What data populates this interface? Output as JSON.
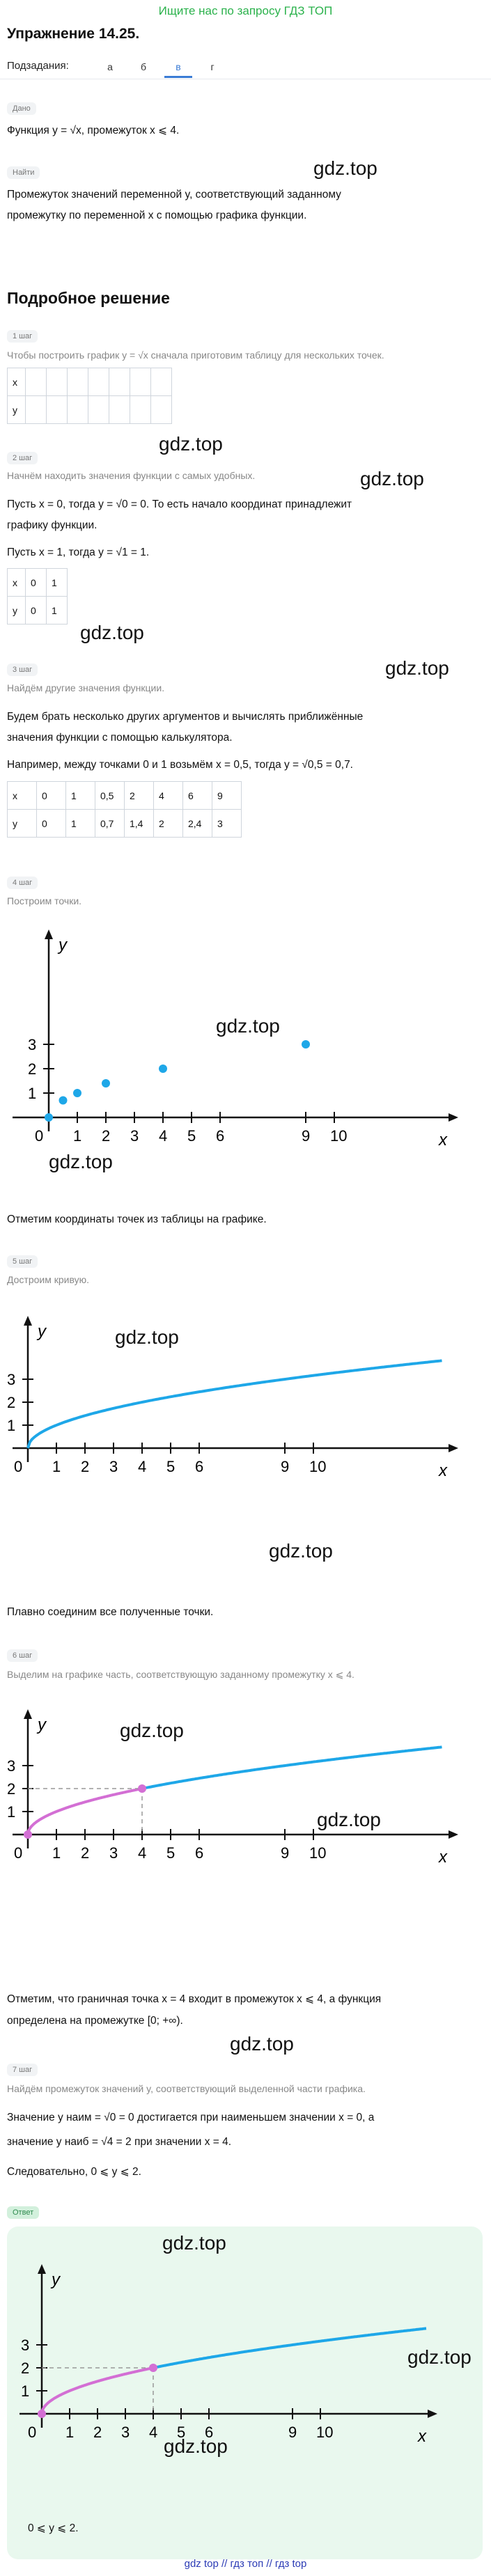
{
  "top_link": "Ищите нас по запросу ГДЗ ТОП",
  "title": "Упражнение 14.25.",
  "subtasks": {
    "label": "Подзадания:",
    "items": [
      "а",
      "б",
      "в",
      "г"
    ],
    "active": "в"
  },
  "given": {
    "tag": "Дано",
    "text": "Функция y = √x, промежуток x ⩽ 4."
  },
  "find": {
    "tag": "Найти",
    "text1": "Промежуток значений переменной y, соответствующий заданному",
    "text2": "промежутку по переменной x с помощью графика функции."
  },
  "solution_title": "Подробное решение",
  "watermark": "gdz.top",
  "step1": {
    "tag": "1 шаг",
    "hint": "Чтобы построить график y = √x сначала приготовим таблицу для нескольких точек.",
    "rows": [
      [
        "x",
        "",
        "",
        "",
        "",
        "",
        "",
        ""
      ],
      [
        "y",
        "",
        "",
        "",
        "",
        "",
        "",
        ""
      ]
    ]
  },
  "step2": {
    "tag": "2 шаг",
    "hint": "Начнём находить значения функции с самых удобных.",
    "line1": "Пусть x = 0, тогда y = √0 = 0. То есть начало координат принадлежит",
    "line2": "графику функции.",
    "line3": "Пусть x = 1, тогда y = √1 = 1.",
    "rows": [
      [
        "x",
        "0",
        "1"
      ],
      [
        "y",
        "0",
        "1"
      ]
    ]
  },
  "step3": {
    "tag": "3 шаг",
    "hint": "Найдём другие значения функции.",
    "line1": "Будем брать несколько других аргументов и вычислять приближённые",
    "line2": "значения функции с помощью калькулятора.",
    "line3": "Например, между точками 0 и 1 возьмём x = 0,5, тогда y = √0,5 = 0,7.",
    "rows": [
      [
        "x",
        "0",
        "1",
        "0,5",
        "2",
        "4",
        "6",
        "9"
      ],
      [
        "y",
        "0",
        "1",
        "0,7",
        "1,4",
        "2",
        "2,4",
        "3"
      ]
    ]
  },
  "step4": {
    "tag": "4 шаг",
    "hint": "Построим точки.",
    "after": "Отметим координаты точек из таблицы на графике."
  },
  "step5": {
    "tag": "5 шаг",
    "hint": "Достроим кривую.",
    "after": "Плавно соединим все полученные точки."
  },
  "step6": {
    "tag": "6 шаг",
    "hint": "Выделим на графике часть, соответствующую заданному промежутку x ⩽ 4.",
    "after1": "Отметим, что граничная точка x = 4 входит в промежуток x ⩽ 4, а функция",
    "after2": "определена на промежутке [0; +∞)."
  },
  "step7": {
    "tag": "7 шаг",
    "hint": "Найдём промежуток значений y, соответствующий выделенной части графика.",
    "line1": "Значение y наим = √0 = 0 достигается при наименьшем значении x = 0, а",
    "line2": "значение y наиб = √4 = 2 при значении x = 4.",
    "line3": "Следовательно, 0 ⩽ y ⩽ 2."
  },
  "answer": {
    "tag": "Ответ",
    "text": "0 ⩽ y ⩽ 2."
  },
  "footer": "gdz top // гдз топ // гдз top",
  "chart_data": [
    {
      "type": "scatter",
      "xlabel": "x",
      "ylabel": "y",
      "x_ticks": [
        "0",
        "1",
        "2",
        "3",
        "4",
        "5",
        "6",
        "9",
        "10"
      ],
      "y_ticks": [
        "1",
        "2",
        "3"
      ],
      "points": [
        [
          0,
          0
        ],
        [
          0.5,
          0.7
        ],
        [
          1,
          1
        ],
        [
          2,
          1.4
        ],
        [
          4,
          2
        ],
        [
          9,
          3
        ]
      ],
      "point_color": "#1ea7e8"
    },
    {
      "type": "line",
      "xlabel": "x",
      "ylabel": "y",
      "function": "y = √x",
      "x_ticks": [
        "0",
        "1",
        "2",
        "3",
        "4",
        "5",
        "6",
        "9",
        "10"
      ],
      "y_ticks": [
        "1",
        "2",
        "3"
      ],
      "x_range": [
        0,
        13
      ],
      "curve_color": "#1ea7e8"
    },
    {
      "type": "line",
      "xlabel": "x",
      "ylabel": "y",
      "function": "y = √x",
      "highlight_range": [
        0,
        4
      ],
      "highlight_color": "#d36fd4",
      "curve_color": "#1ea7e8",
      "marked_points": [
        [
          0,
          0
        ],
        [
          4,
          2
        ]
      ]
    }
  ]
}
